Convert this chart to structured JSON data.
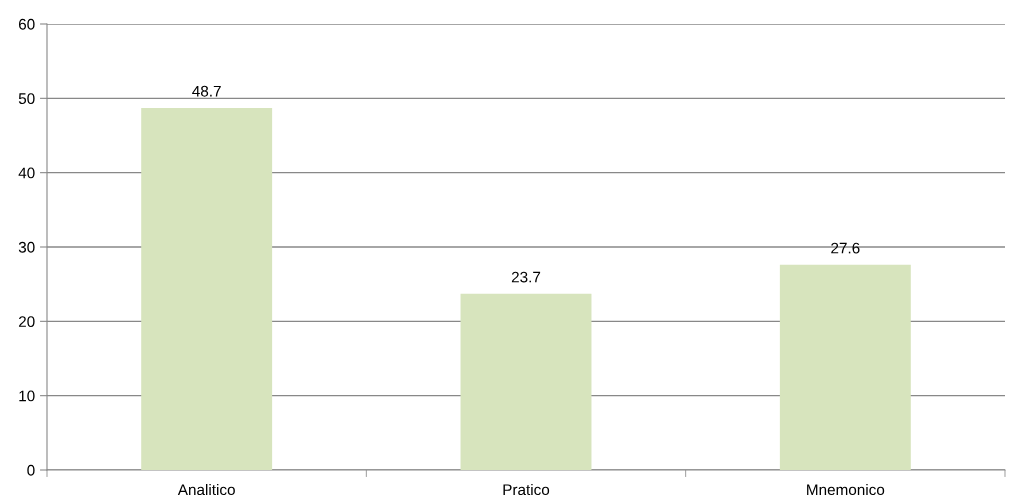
{
  "chart_data": {
    "type": "bar",
    "categories": [
      "Analitico",
      "Pratico",
      "Mnemonico"
    ],
    "values": [
      48.7,
      23.7,
      27.6
    ],
    "color": "#d7e4bd",
    "ylim": [
      0,
      60
    ],
    "yticks": [
      0,
      10,
      20,
      30,
      40,
      50,
      60
    ],
    "grid": "y",
    "data_labels": true
  }
}
